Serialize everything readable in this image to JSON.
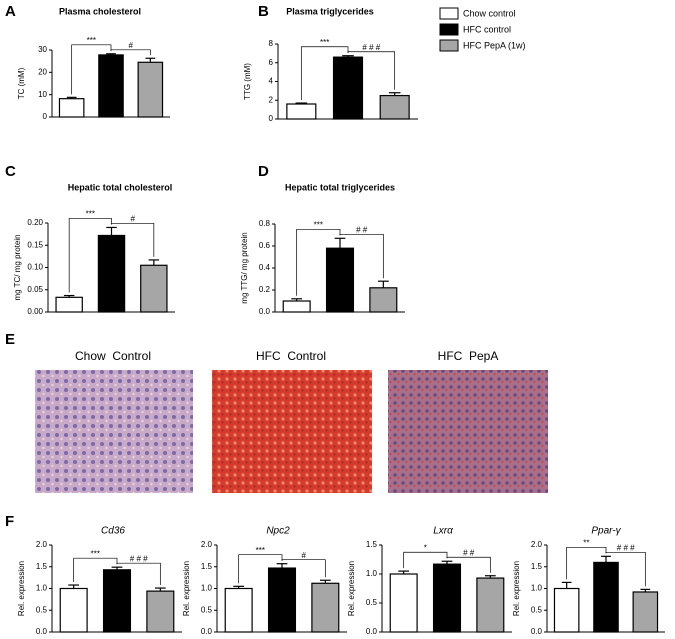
{
  "legend": [
    {
      "name": "Chow control",
      "color": "#ffffff"
    },
    {
      "name": "HFC control",
      "color": "#000000"
    },
    {
      "name": "HFC PepA (1w)",
      "color": "#a6a6a6"
    }
  ],
  "images": {
    "panel": "E",
    "labels": [
      "Chow  Control",
      "HFC  Control",
      "HFC  PepA"
    ]
  },
  "chart_data": [
    {
      "type": "bar",
      "panel": "A",
      "title": "Plasma cholesterol",
      "ylabel": "TC (mM)",
      "values": [
        8.2,
        27.8,
        24.5
      ],
      "errors": [
        0.6,
        0.5,
        1.8
      ],
      "ylim": [
        0,
        30
      ],
      "yticks": [
        0,
        10,
        20,
        30
      ],
      "annotations": [
        "***",
        "#"
      ]
    },
    {
      "type": "bar",
      "panel": "B",
      "title": "Plasma triglycerides",
      "ylabel": "TTG (mM)",
      "values": [
        1.6,
        6.6,
        2.5
      ],
      "errors": [
        0.1,
        0.15,
        0.3
      ],
      "ylim": [
        0,
        8
      ],
      "yticks": [
        0,
        2,
        4,
        6,
        8
      ],
      "annotations": [
        "***",
        "# # #"
      ]
    },
    {
      "type": "bar",
      "panel": "C",
      "title": "Hepatic total cholesterol",
      "ylabel": "mg TC/ mg protein",
      "values": [
        0.033,
        0.172,
        0.105
      ],
      "errors": [
        0.004,
        0.018,
        0.012
      ],
      "ylim": [
        0,
        0.2
      ],
      "yticks": [
        {
          "value": 0,
          "label": "0.00"
        },
        {
          "value": 0.05,
          "label": "0.05"
        },
        {
          "value": 0.1,
          "label": "0.10"
        },
        {
          "value": 0.15,
          "label": "0.15"
        },
        {
          "value": 0.2,
          "label": "0.20"
        }
      ],
      "annotations": [
        "***",
        "#"
      ]
    },
    {
      "type": "bar",
      "panel": "D",
      "title": "Hepatic total triglycerides",
      "ylabel": "mg TTG/ mg protein",
      "values": [
        0.1,
        0.58,
        0.22
      ],
      "errors": [
        0.02,
        0.09,
        0.06
      ],
      "ylim": [
        0,
        0.8
      ],
      "yticks": [
        {
          "value": 0,
          "label": "0.0"
        },
        0.2,
        0.4,
        0.6,
        0.8
      ],
      "annotations": [
        "***",
        "# #"
      ]
    },
    {
      "type": "bar",
      "panel": "F",
      "title": "Cd36",
      "ylabel": "Rel. expression",
      "values": [
        1,
        1.43,
        0.94
      ],
      "errors": [
        0.08,
        0.06,
        0.07
      ],
      "ylim": [
        0,
        2
      ],
      "yticks": [
        {
          "value": 0,
          "label": "0.0"
        },
        0.5,
        {
          "value": 1,
          "label": "1.0"
        },
        1.5,
        {
          "value": 2,
          "label": "2.0"
        }
      ],
      "annotations": [
        "***",
        "# # #"
      ]
    },
    {
      "type": "bar",
      "title": "Npc2",
      "ylabel": "Rel. expression",
      "values": [
        1,
        1.47,
        1.12
      ],
      "errors": [
        0.05,
        0.1,
        0.07
      ],
      "ylim": [
        0,
        2
      ],
      "yticks": [
        {
          "value": 0,
          "label": "0.0"
        },
        0.5,
        {
          "value": 1,
          "label": "1.0"
        },
        1.5,
        {
          "value": 2,
          "label": "2.0"
        }
      ],
      "annotations": [
        "***",
        "#"
      ]
    },
    {
      "type": "bar",
      "title": "Lxrα",
      "ylabel": "Rel. expression",
      "values": [
        1,
        1.17,
        0.93
      ],
      "errors": [
        0.05,
        0.05,
        0.04
      ],
      "ylim": [
        0,
        1.5
      ],
      "yticks": [
        {
          "value": 0,
          "label": "0.0"
        },
        0.5,
        {
          "value": 1,
          "label": "1.0"
        },
        1.5
      ],
      "annotations": [
        "*",
        "# #"
      ]
    },
    {
      "type": "bar",
      "title": "Ppar-γ",
      "ylabel": "Rel. expression",
      "values": [
        1,
        1.6,
        0.92
      ],
      "errors": [
        0.14,
        0.14,
        0.06
      ],
      "ylim": [
        0,
        2
      ],
      "yticks": [
        {
          "value": 0,
          "label": "0.0"
        },
        0.5,
        {
          "value": 1,
          "label": "1.0"
        },
        1.5,
        {
          "value": 2,
          "label": "2.0"
        }
      ],
      "annotations": [
        "**",
        "# # #"
      ]
    }
  ]
}
